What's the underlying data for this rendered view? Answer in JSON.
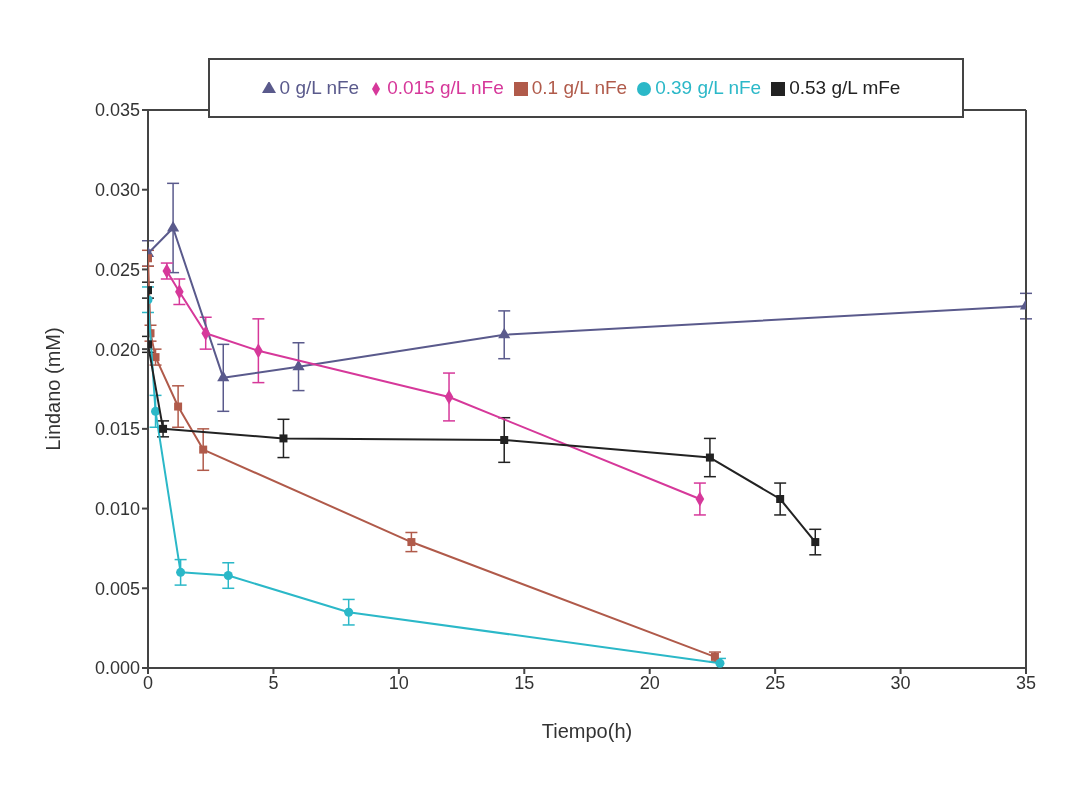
{
  "chart_data": {
    "type": "line",
    "xlabel": "Tiempo(h)",
    "ylabel": "Lindano (mM)",
    "xlim": [
      0,
      35
    ],
    "xticks": [
      0,
      5,
      10,
      15,
      20,
      25,
      30,
      35
    ],
    "ylim": [
      0,
      0.035
    ],
    "yticks": [
      {
        "value": 0,
        "label": "0.000"
      },
      {
        "value": 0.005,
        "label": "0.005"
      },
      {
        "value": 0.01,
        "label": "0.010"
      },
      {
        "value": 0.015,
        "label": "0.015"
      },
      {
        "value": 0.02,
        "label": "0.020"
      },
      {
        "value": 0.025,
        "label": "0.025"
      },
      {
        "value": 0.03,
        "label": "0.030"
      },
      {
        "value": 0.035,
        "label": "0.035"
      }
    ],
    "grid": false,
    "legend": "top",
    "series": [
      {
        "name": "0 g/L nFe",
        "color": "#5a5a8c",
        "marker": "triangle",
        "x": [
          0,
          1,
          3,
          6,
          14.2,
          35
        ],
        "values": [
          0.026,
          0.0276,
          0.0182,
          0.0189,
          0.0209,
          0.0227
        ],
        "errors": [
          0.0008,
          0.0028,
          0.0021,
          0.0015,
          0.0015,
          0.0008
        ]
      },
      {
        "name": "0.015 g/L nFe",
        "color": "#d6389a",
        "marker": "diamond",
        "x": [
          0.75,
          1.25,
          2.3,
          4.4,
          12,
          22
        ],
        "values": [
          0.0249,
          0.0236,
          0.021,
          0.0199,
          0.017,
          0.0106
        ],
        "errors": [
          0.0005,
          0.0008,
          0.001,
          0.002,
          0.0015,
          0.001
        ]
      },
      {
        "name": "0.1 g/L nFe",
        "color": "#b05a4a",
        "marker": "square",
        "x": [
          0,
          0.1,
          0.3,
          1.2,
          2.2,
          10.5,
          22.6
        ],
        "values": [
          0.0257,
          0.021,
          0.0195,
          0.0164,
          0.0137,
          0.0079,
          0.0007
        ],
        "errors": [
          0.0005,
          0.0005,
          0.0005,
          0.0013,
          0.0013,
          0.0006,
          0.0003
        ]
      },
      {
        "name": "0.39 g/L nFe",
        "color": "#2bb8c8",
        "marker": "circle",
        "x": [
          0,
          0.3,
          1.3,
          3.2,
          8,
          22.8
        ],
        "values": [
          0.0231,
          0.0161,
          0.006,
          0.0058,
          0.0035,
          0.0003
        ],
        "errors": [
          0.0008,
          0.001,
          0.0008,
          0.0008,
          0.0008,
          0.0003
        ]
      },
      {
        "name": "0.53 g/L mFe",
        "color": "#222222",
        "marker": "square",
        "x": [
          0,
          0,
          0.6,
          5.4,
          14.2,
          22.4,
          25.2,
          26.6
        ],
        "values": [
          0.0237,
          0.0203,
          0.015,
          0.0144,
          0.0143,
          0.0132,
          0.0106,
          0.0079
        ],
        "errors": [
          0.0005,
          0.0005,
          0.0005,
          0.0012,
          0.0014,
          0.0012,
          0.001,
          0.0008
        ]
      }
    ]
  }
}
